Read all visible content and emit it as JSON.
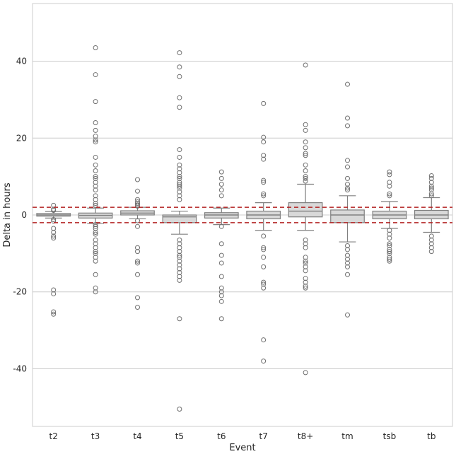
{
  "chart_data": {
    "type": "boxplot",
    "title": "",
    "xlabel": "Event",
    "ylabel": "Delta in hours",
    "ylim": [
      -55,
      55
    ],
    "yticks": [
      -40,
      -20,
      0,
      20,
      40
    ],
    "grid": "horizontal",
    "colors": {
      "box_fill": "#d9d9d9",
      "box_edge": "#808080",
      "grid": "#cccccc",
      "threshold": "#b22222",
      "frame": "#cccccc"
    },
    "thresholds": [
      2,
      -2
    ],
    "categories": [
      "t2",
      "t3",
      "t4",
      "t5",
      "t6",
      "t7",
      "t8+",
      "tm",
      "tsb",
      "tb"
    ],
    "boxes": [
      {
        "category": "t2",
        "whisker_low": -0.8,
        "q1": -0.3,
        "median": 0.0,
        "q3": 0.4,
        "whisker_high": 0.9,
        "outliers": [
          2.5,
          1.5,
          1.2,
          -1.2,
          -1.6,
          -3.5,
          -4.5,
          -5.5,
          -6.0,
          -19.5,
          -20.5,
          -25.2,
          -25.8
        ]
      },
      {
        "category": "t3",
        "whisker_low": -2.2,
        "q1": -0.8,
        "median": -0.1,
        "q3": 0.5,
        "whisker_high": 1.8,
        "outliers": [
          43.5,
          36.5,
          29.5,
          24.0,
          22.0,
          20.5,
          19.5,
          19.0,
          15.0,
          13.0,
          11.5,
          10.0,
          9.5,
          8.5,
          7.5,
          6.5,
          5.0,
          4.0,
          3.0,
          2.5,
          -2.5,
          -3.0,
          -3.5,
          -4.5,
          -5.0,
          -6.5,
          -7.5,
          -8.5,
          -9.5,
          -10.0,
          -11.0,
          -12.0,
          -15.5,
          -19.0,
          -20.0
        ]
      },
      {
        "category": "t4",
        "whisker_low": -1.0,
        "q1": 0.0,
        "median": 0.5,
        "q3": 1.1,
        "whisker_high": 2.0,
        "outliers": [
          9.2,
          6.2,
          4.0,
          3.4,
          3.0,
          2.6,
          2.3,
          -1.5,
          -3.0,
          -8.5,
          -9.5,
          -12.0,
          -12.5,
          -15.5,
          -21.5,
          -24.0
        ]
      },
      {
        "category": "t5",
        "whisker_low": -5.0,
        "q1": -2.0,
        "median": -0.5,
        "q3": 0.0,
        "whisker_high": 1.0,
        "outliers": [
          42.2,
          38.5,
          36.0,
          30.5,
          28.0,
          17.0,
          15.0,
          13.0,
          12.0,
          11.0,
          10.0,
          9.5,
          8.5,
          8.0,
          7.5,
          7.0,
          6.0,
          5.0,
          4.0,
          -6.5,
          -7.5,
          -8.5,
          -9.5,
          -10.5,
          -11.0,
          -12.0,
          -13.0,
          -14.0,
          -15.0,
          -16.0,
          -17.0,
          -27.0,
          -50.5
        ]
      },
      {
        "category": "t6",
        "whisker_low": -2.5,
        "q1": -0.8,
        "median": 0.0,
        "q3": 0.6,
        "whisker_high": 1.8,
        "outliers": [
          11.2,
          9.5,
          8.0,
          6.5,
          5.0,
          -3.0,
          -7.5,
          -10.5,
          -12.5,
          -16.0,
          -19.0,
          -20.0,
          -21.0,
          -22.5,
          -27.0
        ]
      },
      {
        "category": "t7",
        "whisker_low": -4.0,
        "q1": -1.0,
        "median": 0.0,
        "q3": 1.0,
        "whisker_high": 3.2,
        "outliers": [
          29.0,
          20.2,
          19.0,
          15.5,
          14.5,
          9.0,
          8.5,
          5.5,
          5.0,
          -5.5,
          -8.5,
          -9.0,
          -11.0,
          -13.5,
          -17.5,
          -18.0,
          -19.0,
          -32.5,
          -38.0
        ]
      },
      {
        "category": "t8+",
        "whisker_low": -4.0,
        "q1": -0.5,
        "median": 1.0,
        "q3": 3.2,
        "whisker_high": 8.0,
        "outliers": [
          39.0,
          23.5,
          22.0,
          19.0,
          17.5,
          16.0,
          15.5,
          13.0,
          11.5,
          10.0,
          9.5,
          8.8,
          -6.5,
          -7.5,
          -8.5,
          -11.0,
          -12.0,
          -12.5,
          -13.5,
          -14.5,
          -16.5,
          -17.5,
          -18.5,
          -19.0,
          -41.0
        ]
      },
      {
        "category": "tm",
        "whisker_low": -7.0,
        "q1": -2.0,
        "median": 0.0,
        "q3": 1.3,
        "whisker_high": 5.0,
        "outliers": [
          34.0,
          25.2,
          23.2,
          14.2,
          12.5,
          9.5,
          8.0,
          7.0,
          6.5,
          -8.0,
          -9.0,
          -10.5,
          -11.5,
          -12.5,
          -13.5,
          -15.5,
          -26.0
        ]
      },
      {
        "category": "tsb",
        "whisker_low": -3.5,
        "q1": -1.0,
        "median": 0.0,
        "q3": 1.0,
        "whisker_high": 3.5,
        "outliers": [
          11.2,
          10.5,
          8.5,
          7.5,
          5.5,
          5.0,
          -4.0,
          -5.0,
          -6.0,
          -7.5,
          -8.0,
          -9.0,
          -9.5,
          -10.0,
          -11.0,
          -11.5,
          -12.0
        ]
      },
      {
        "category": "tb",
        "whisker_low": -4.5,
        "q1": -1.0,
        "median": 0.0,
        "q3": 1.2,
        "whisker_high": 4.5,
        "outliers": [
          10.2,
          9.5,
          8.5,
          7.5,
          7.0,
          6.5,
          5.5,
          5.0,
          -5.5,
          -6.5,
          -7.5,
          -8.5,
          -9.5
        ]
      }
    ]
  }
}
